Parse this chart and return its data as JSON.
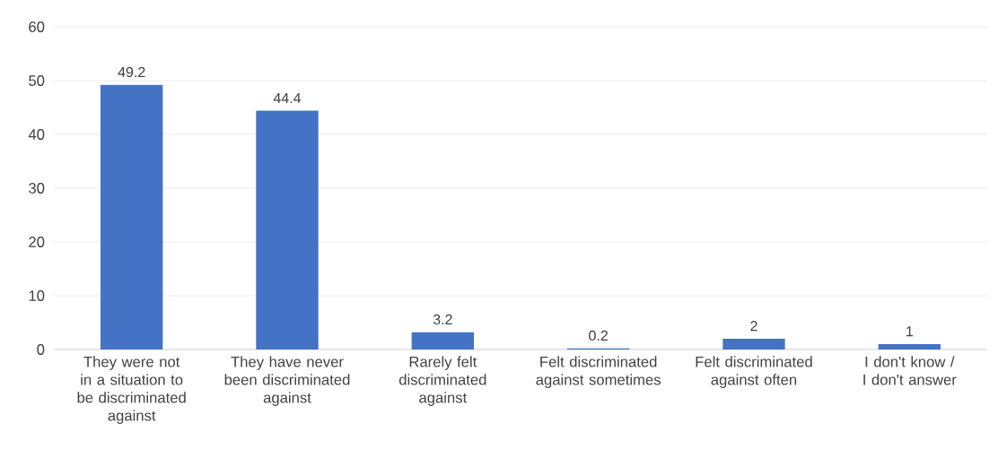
{
  "chart_data": {
    "type": "bar",
    "categories": [
      "They were not in a situation to be discriminated against",
      "They have never been discriminated against",
      "Rarely felt discriminated against",
      "Felt discriminated against sometimes",
      "Felt discriminated against often",
      "I don't know / I don't answer"
    ],
    "values": [
      49.2,
      44.4,
      3.2,
      0.2,
      2,
      1
    ],
    "color": "#4472c4",
    "ylim": [
      0,
      60
    ],
    "yticks": [
      0,
      10,
      20,
      30,
      40,
      50,
      60
    ],
    "grid": "y",
    "data_labels": true
  }
}
